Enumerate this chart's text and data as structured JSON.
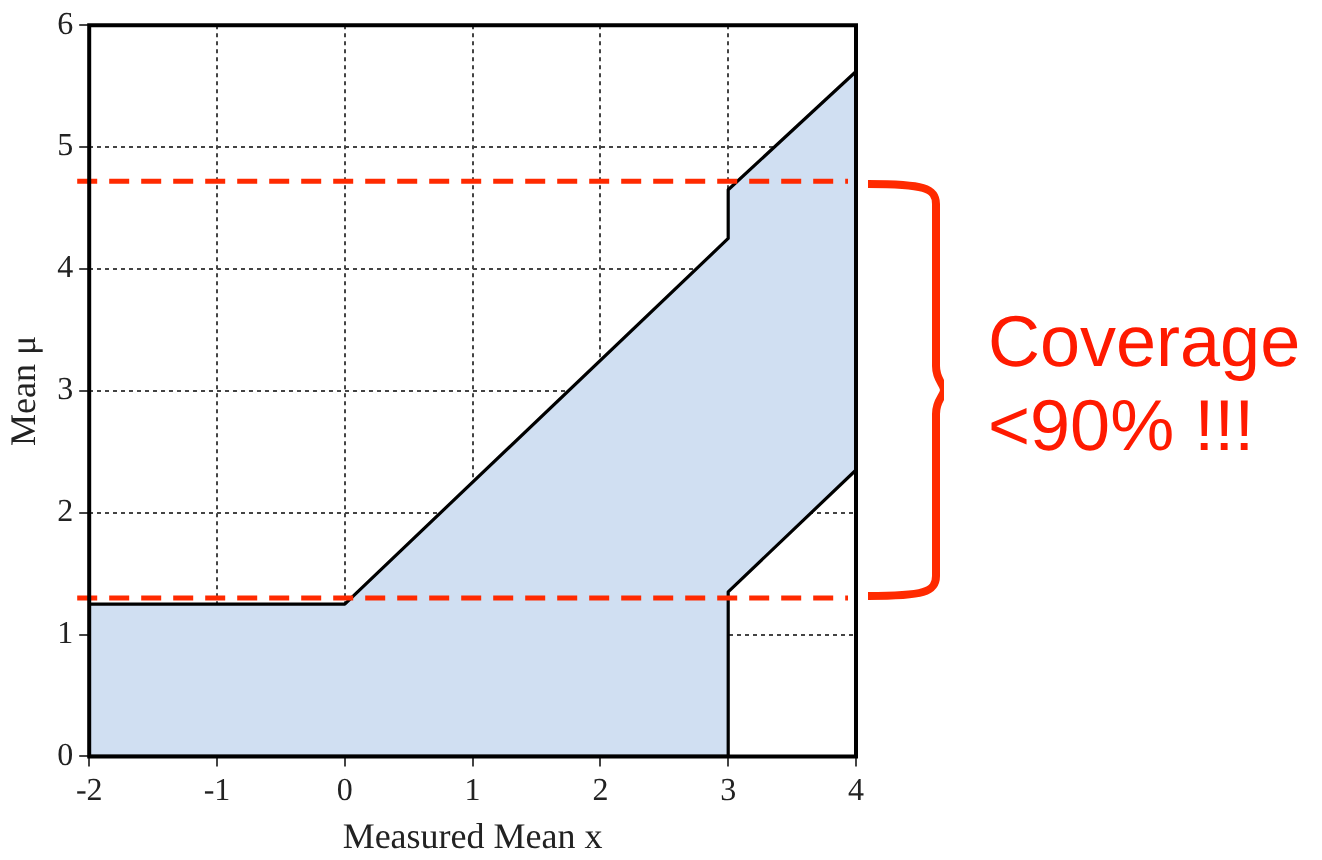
{
  "chart_data": {
    "type": "area",
    "xlabel": "Measured Mean x",
    "ylabel": "Mean μ",
    "x": [
      -2,
      0,
      3,
      3,
      4
    ],
    "series": [
      {
        "type": "area",
        "color": "#d0dff2",
        "values": [
          1.25,
          1.25,
          4.25,
          4.65,
          5.62
        ]
      },
      {
        "type": "line",
        "color": "#000000",
        "x": [
          -2,
          3,
          3,
          4
        ],
        "values": [
          0,
          0,
          1.35,
          2.35
        ]
      }
    ],
    "xlim": [
      -2,
      4
    ],
    "xticks": [
      -2,
      -1,
      0,
      1,
      2,
      3,
      4
    ],
    "ylim": [
      0,
      6
    ],
    "yticks": [
      0,
      1,
      2,
      3,
      4,
      5,
      6
    ],
    "grid": true,
    "legend": false,
    "marker": "none",
    "ref_lines": [
      {
        "axis": "y",
        "value": 4.72,
        "color": "#ff2a00",
        "line_style": "dashed"
      },
      {
        "axis": "y",
        "value": 1.3,
        "color": "#ff2a00",
        "line_style": "dashed"
      }
    ],
    "annotations": [
      "Coverage\n<90% !!!"
    ]
  }
}
